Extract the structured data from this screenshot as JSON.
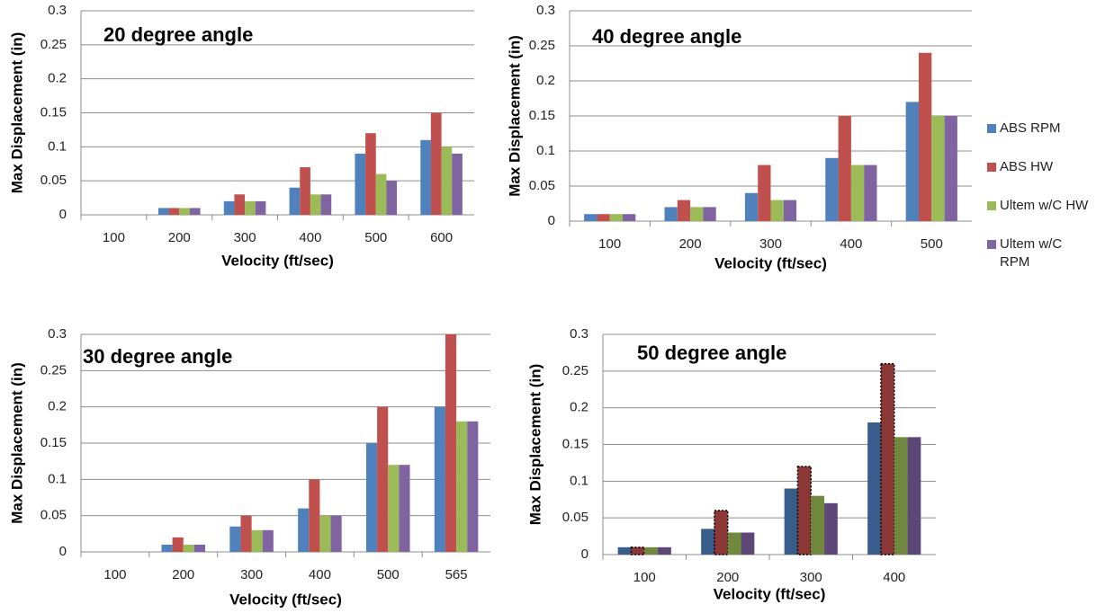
{
  "chart_data": [
    {
      "type": "bar",
      "title": "20 degree angle",
      "x_label": "Velocity (ft/sec)",
      "y_label": "Max Displacement (in)",
      "categories": [
        "100",
        "200",
        "300",
        "400",
        "500",
        "600"
      ],
      "series": [
        {
          "color": "#4f81bd",
          "values": [
            0,
            0.01,
            0.02,
            0.04,
            0.09,
            0.11
          ]
        },
        {
          "color": "#c0504d",
          "values": [
            0,
            0.01,
            0.03,
            0.07,
            0.12,
            0.15
          ]
        },
        {
          "color": "#9bbb59",
          "values": [
            0,
            0.01,
            0.02,
            0.03,
            0.06,
            0.1
          ]
        },
        {
          "color": "#8064a2",
          "values": [
            0,
            0.01,
            0.02,
            0.03,
            0.05,
            0.09
          ]
        }
      ],
      "ylim": [
        0,
        0.3
      ],
      "yticks": [
        0,
        0.05,
        0.1,
        0.15,
        0.2,
        0.25,
        0.3
      ],
      "grid": true
    },
    {
      "type": "bar",
      "title": "40 degree angle",
      "x_label": "Velocity (ft/sec)",
      "y_label": "Max Displacement (in)",
      "categories": [
        "100",
        "200",
        "300",
        "400",
        "500"
      ],
      "series": [
        {
          "name": "ABS RPM",
          "color": "#4f81bd",
          "values": [
            0.01,
            0.02,
            0.04,
            0.09,
            0.17
          ]
        },
        {
          "name": "ABS HW",
          "color": "#c0504d",
          "values": [
            0.01,
            0.03,
            0.08,
            0.15,
            0.24
          ]
        },
        {
          "name": "Ultem w/C HW",
          "color": "#9bbb59",
          "values": [
            0.01,
            0.02,
            0.03,
            0.08,
            0.15
          ]
        },
        {
          "name": "Ultem w/C RPM",
          "color": "#8064a2",
          "values": [
            0.01,
            0.02,
            0.03,
            0.08,
            0.15
          ]
        }
      ],
      "ylim": [
        0,
        0.3
      ],
      "yticks": [
        0,
        0.05,
        0.1,
        0.15,
        0.2,
        0.25,
        0.3
      ],
      "grid": true,
      "legend": "right"
    },
    {
      "type": "bar",
      "title": "30 degree angle",
      "x_label": "Velocity (ft/sec)",
      "y_label": "Max Displacement (in)",
      "categories": [
        "100",
        "200",
        "300",
        "400",
        "500",
        "565"
      ],
      "series": [
        {
          "color": "#4f81bd",
          "values": [
            0,
            0.01,
            0.035,
            0.06,
            0.15,
            0.2
          ]
        },
        {
          "color": "#c0504d",
          "values": [
            0,
            0.02,
            0.05,
            0.1,
            0.2,
            0.3
          ]
        },
        {
          "color": "#9bbb59",
          "values": [
            0,
            0.01,
            0.03,
            0.05,
            0.12,
            0.18
          ]
        },
        {
          "color": "#8064a2",
          "values": [
            0,
            0.01,
            0.03,
            0.05,
            0.12,
            0.18
          ]
        }
      ],
      "ylim": [
        0,
        0.3
      ],
      "yticks": [
        0,
        0.05,
        0.1,
        0.15,
        0.2,
        0.25,
        0.3
      ],
      "grid": true
    },
    {
      "type": "bar",
      "title": "50 degree angle",
      "x_label": "Velocity (ft/sec)",
      "y_label": "Max Displacement (in)",
      "categories": [
        "100",
        "200",
        "300",
        "400"
      ],
      "series": [
        {
          "color": "#385d8a",
          "values": [
            0.01,
            0.035,
            0.09,
            0.18
          ]
        },
        {
          "color": "#8c3836",
          "values": [
            0.01,
            0.06,
            0.12,
            0.26
          ],
          "border": "dotted"
        },
        {
          "color": "#71893f",
          "values": [
            0.01,
            0.03,
            0.08,
            0.16
          ]
        },
        {
          "color": "#5c4776",
          "values": [
            0.01,
            0.03,
            0.07,
            0.16
          ]
        }
      ],
      "ylim": [
        0,
        0.3
      ],
      "yticks": [
        0,
        0.05,
        0.1,
        0.15,
        0.2,
        0.25,
        0.3
      ],
      "grid": true
    }
  ]
}
